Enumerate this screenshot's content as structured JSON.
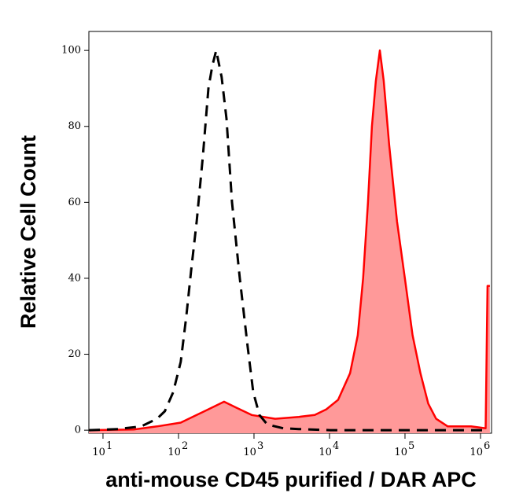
{
  "chart_data": {
    "type": "histogram-overlay",
    "x_label": "anti-mouse CD45 purified / DAR APC",
    "y_label": "Relative Cell Count",
    "xscale": "log",
    "xlim": [
      6.5,
      1400000
    ],
    "ylim": [
      -0.8,
      105
    ],
    "xticks": [
      {
        "value": 10,
        "label": "10",
        "exponent": "1"
      },
      {
        "value": 100,
        "label": "10",
        "exponent": "2"
      },
      {
        "value": 1000,
        "label": "10",
        "exponent": "3"
      },
      {
        "value": 10000,
        "label": "10",
        "exponent": "4"
      },
      {
        "value": 100000,
        "label": "10",
        "exponent": "5"
      },
      {
        "value": 1000000,
        "label": "10",
        "exponent": "6"
      }
    ],
    "yticks": [
      0,
      20,
      40,
      60,
      80,
      100
    ],
    "series": [
      {
        "color": "#ff0000",
        "fill": "#ff9999",
        "dashed": false,
        "x": [
          6.5,
          25.5,
          52,
          107,
          221,
          401,
          576,
          932,
          1910,
          3920,
          6370,
          9060,
          13000,
          18700,
          23700,
          27900,
          32300,
          36500,
          41100,
          46400,
          52300,
          61800,
          78400,
          99500,
          126000,
          160000,
          203000,
          258000,
          368000,
          750000,
          1170000,
          1240000,
          1330000
        ],
        "values": [
          0,
          0.2,
          1,
          2,
          5,
          7.5,
          6,
          4,
          3,
          3.5,
          4,
          5.5,
          8,
          15,
          25,
          40,
          60,
          80,
          92,
          100,
          92,
          75,
          55,
          40,
          25,
          15,
          7,
          3,
          1,
          1,
          0.5,
          38,
          38
        ]
      },
      {
        "color": "#000000",
        "fill": null,
        "dashed": true,
        "x": [
          6.5,
          15.8,
          32,
          52,
          66,
          85,
          107,
          127,
          147,
          174,
          210,
          249,
          281,
          316,
          373,
          432,
          511,
          649,
          825,
          976,
          1180,
          1500,
          2440,
          3920,
          10200,
          69000,
          1100000
        ],
        "values": [
          0,
          0.3,
          1,
          3,
          5,
          10,
          18,
          30,
          42,
          55,
          72,
          90,
          96,
          100,
          93,
          82,
          60,
          40,
          22,
          10,
          4,
          1.5,
          0.5,
          0.3,
          0,
          0,
          0
        ]
      }
    ]
  }
}
